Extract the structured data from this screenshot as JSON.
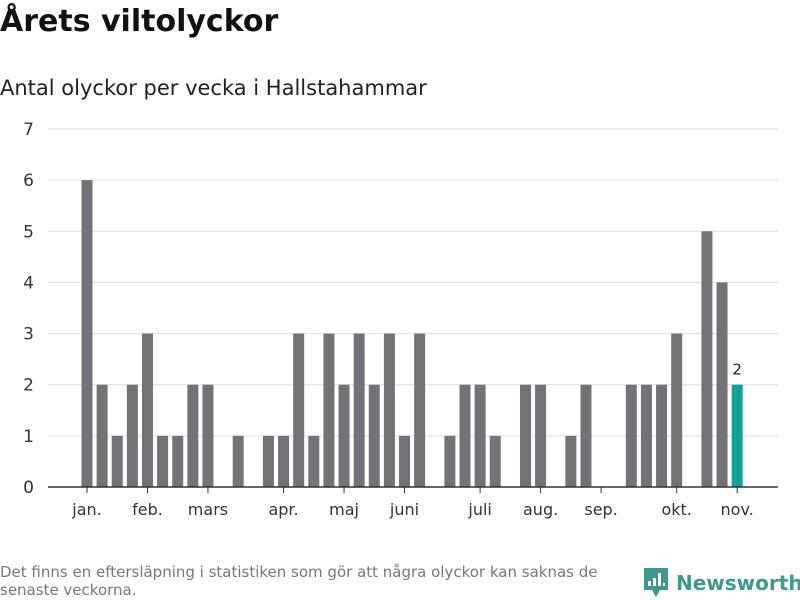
{
  "title": "Årets viltolyckor",
  "subtitle": "Antal olyckor per vecka i Hallstahammar",
  "footer": "Det finns en eftersläpning i statistiken som gör att några olyckor kan saknas de senaste veckorna.",
  "brand": "Newsworthy",
  "colors": {
    "bar": "#737277",
    "highlight": "#0fa19a",
    "brand": "#3a9a8f"
  },
  "chart_data": {
    "type": "bar",
    "title": "Antal olyckor per vecka i Hallstahammar",
    "x": [
      1,
      2,
      3,
      4,
      5,
      6,
      7,
      8,
      9,
      10,
      11,
      12,
      13,
      14,
      15,
      16,
      17,
      18,
      19,
      20,
      21,
      22,
      23,
      24,
      25,
      26,
      27,
      28,
      29,
      30,
      31,
      32,
      33,
      34,
      35,
      36,
      37,
      38,
      39,
      40,
      41,
      42,
      43,
      44
    ],
    "values": [
      6,
      2,
      1,
      2,
      3,
      1,
      1,
      2,
      2,
      0,
      1,
      0,
      1,
      1,
      3,
      1,
      3,
      2,
      3,
      2,
      3,
      1,
      3,
      0,
      1,
      2,
      2,
      1,
      0,
      2,
      2,
      0,
      1,
      2,
      0,
      0,
      2,
      2,
      2,
      3,
      0,
      5,
      4,
      2
    ],
    "ylim": [
      0,
      7
    ],
    "yticks": [
      "0",
      "1",
      "2",
      "3",
      "4",
      "5",
      "6",
      "7"
    ],
    "month_labels": [
      {
        "label": "jan.",
        "week": 1
      },
      {
        "label": "feb.",
        "week": 5
      },
      {
        "label": "mars",
        "week": 9
      },
      {
        "label": "apr.",
        "week": 14
      },
      {
        "label": "maj",
        "week": 18
      },
      {
        "label": "juni",
        "week": 22
      },
      {
        "label": "juli",
        "week": 27
      },
      {
        "label": "aug.",
        "week": 31
      },
      {
        "label": "sep.",
        "week": 35
      },
      {
        "label": "okt.",
        "week": 40
      },
      {
        "label": "nov.",
        "week": 44
      }
    ],
    "annotation": {
      "week": 44,
      "text": "2"
    },
    "grid": true
  }
}
